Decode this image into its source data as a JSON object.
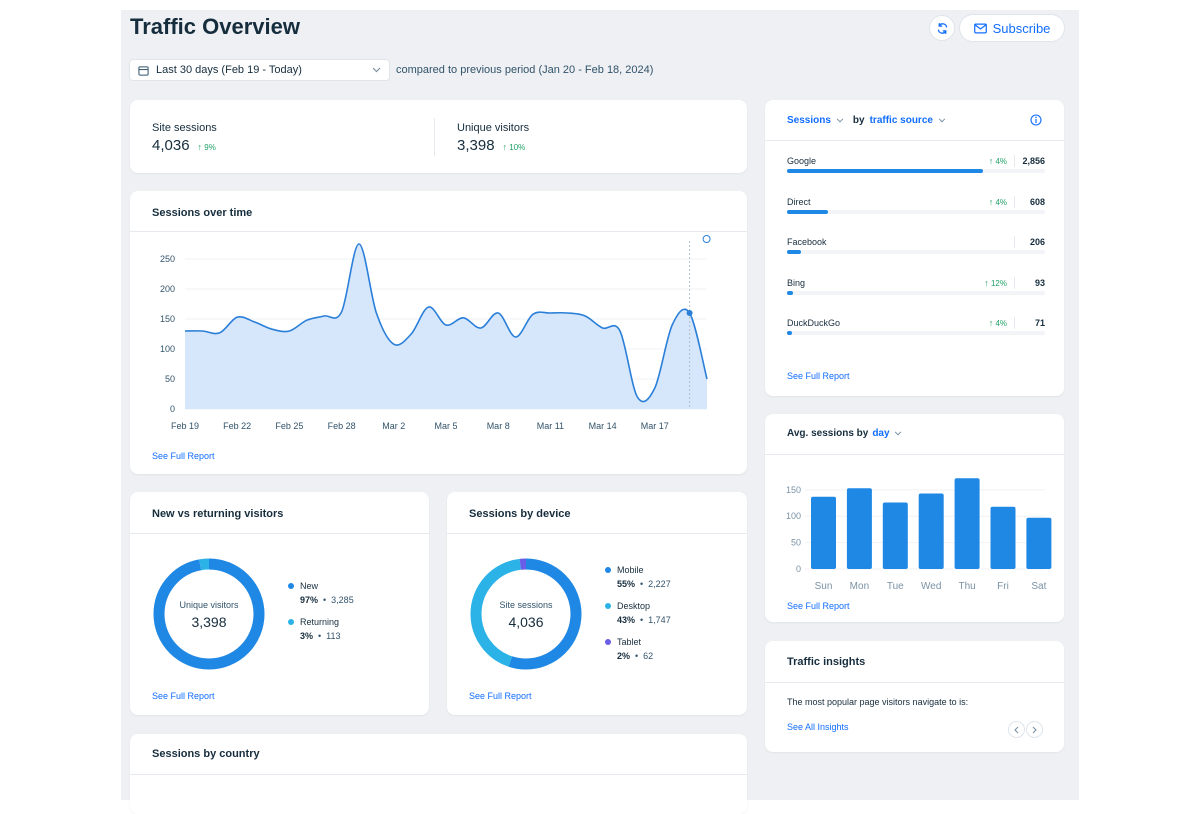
{
  "header": {
    "title": "Traffic Overview",
    "subscribe_label": "Subscribe",
    "date_range": "Last 30 days (Feb 19 - Today)",
    "compare_text": "compared to previous period (Jan 20 - Feb 18, 2024)"
  },
  "kpis": [
    {
      "label": "Site sessions",
      "value": "4,036",
      "change": "9%"
    },
    {
      "label": "Unique visitors",
      "value": "3,398",
      "change": "10%"
    }
  ],
  "sessions_over_time": {
    "title": "Sessions over time",
    "link": "See Full Report",
    "chart_data": {
      "type": "area",
      "x_ticks": [
        "Feb 19",
        "Feb 22",
        "Feb 25",
        "Feb 28",
        "Mar 2",
        "Mar 5",
        "Mar 8",
        "Mar 11",
        "Mar 14",
        "Mar 17"
      ],
      "y_ticks": [
        "0",
        "50",
        "100",
        "150",
        "200",
        "250"
      ],
      "ylim": [
        0,
        280
      ],
      "values": [
        130,
        130,
        127,
        153,
        145,
        133,
        130,
        148,
        155,
        162,
        275,
        160,
        108,
        125,
        170,
        140,
        152,
        135,
        160,
        120,
        158,
        160,
        160,
        155,
        135,
        130,
        20,
        35,
        140,
        160,
        50
      ],
      "highlight_index": 29
    }
  },
  "new_vs_returning": {
    "title": "New vs returning visitors",
    "center_label": "Unique visitors",
    "center_value": "3,398",
    "link": "See Full Report",
    "items": [
      {
        "label": "New",
        "pct": "97%",
        "count": "3,285",
        "fraction": 0.97,
        "color": "#1f88e5"
      },
      {
        "label": "Returning",
        "pct": "3%",
        "count": "113",
        "fraction": 0.03,
        "color": "#2bb3e8"
      }
    ]
  },
  "sessions_by_device": {
    "title": "Sessions by device",
    "center_label": "Site sessions",
    "center_value": "4,036",
    "link": "See Full Report",
    "items": [
      {
        "label": "Mobile",
        "pct": "55%",
        "count": "2,227",
        "fraction": 0.55,
        "color": "#1f88e5"
      },
      {
        "label": "Desktop",
        "pct": "43%",
        "count": "1,747",
        "fraction": 0.43,
        "color": "#2bb3e8"
      },
      {
        "label": "Tablet",
        "pct": "2%",
        "count": "62",
        "fraction": 0.02,
        "color": "#6a5ee8"
      }
    ]
  },
  "sessions_by_country": {
    "title": "Sessions by country"
  },
  "traffic_source": {
    "metric_label": "Sessions",
    "by_label": "by",
    "dimension_label": "traffic source",
    "link": "See Full Report",
    "rows": [
      {
        "name": "Google",
        "change": "4%",
        "value": "2,856",
        "fraction": 0.76
      },
      {
        "name": "Direct",
        "change": "4%",
        "value": "608",
        "fraction": 0.16
      },
      {
        "name": "Facebook",
        "change": "",
        "value": "206",
        "fraction": 0.055
      },
      {
        "name": "Bing",
        "change": "12%",
        "value": "93",
        "fraction": 0.025
      },
      {
        "name": "DuckDuckGo",
        "change": "4%",
        "value": "71",
        "fraction": 0.02
      }
    ]
  },
  "avg_by_day": {
    "title_prefix": "Avg. sessions by",
    "title_dim": "day",
    "link": "See Full Report",
    "chart_data": {
      "type": "bar",
      "categories": [
        "Sun",
        "Mon",
        "Tue",
        "Wed",
        "Thu",
        "Fri",
        "Sat"
      ],
      "values": [
        137,
        153,
        126,
        143,
        172,
        118,
        97
      ],
      "y_ticks": [
        "0",
        "50",
        "100",
        "150"
      ],
      "ylim": [
        0,
        180
      ]
    }
  },
  "traffic_insights": {
    "title": "Traffic insights",
    "text": "The most popular page visitors navigate to is:",
    "link": "See All Insights"
  },
  "colors": {
    "accent": "#116dff",
    "bar": "#1f88e5",
    "area_fill": "#d6e6fb",
    "positive": "#21a366"
  }
}
